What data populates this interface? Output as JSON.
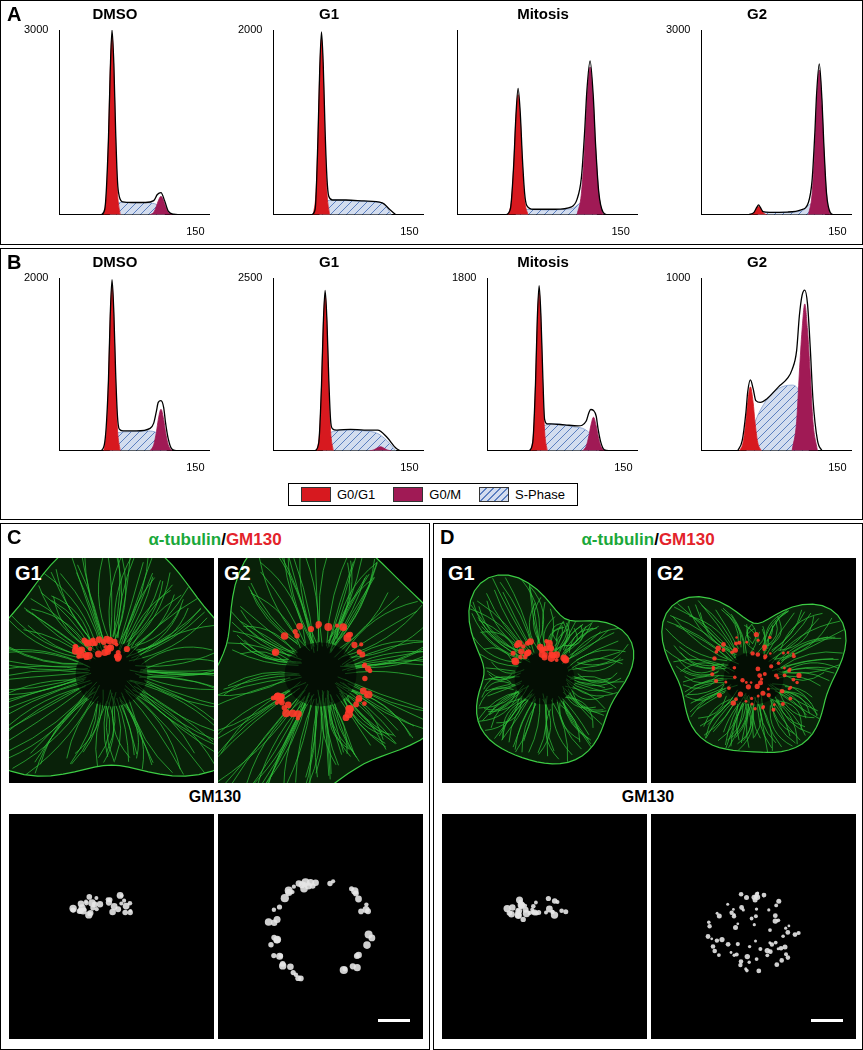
{
  "chart_data": [
    {
      "panel": "A",
      "type": "line",
      "title": "DMSO",
      "xlim": [
        0,
        165
      ],
      "xticks": [
        150
      ],
      "ylim": [
        0,
        3000
      ],
      "yticks": [
        3000
      ],
      "grid": false,
      "series": [
        {
          "name": "G0/G1",
          "color": "#d7191f",
          "x": [
            49,
            52,
            54,
            56,
            58,
            60,
            62,
            64,
            67
          ],
          "values": [
            0,
            380,
            1190,
            2320,
            2900,
            2320,
            1190,
            380,
            0
          ]
        },
        {
          "name": "G0/M",
          "color": "#a01a55",
          "x": [
            100,
            104,
            107,
            109,
            112,
            115,
            117,
            120,
            124
          ],
          "values": [
            0,
            40,
            140,
            225,
            300,
            225,
            140,
            40,
            0
          ]
        },
        {
          "name": "S-Phase",
          "color": "#d3ddef",
          "x": [
            56,
            62,
            70,
            90,
            105,
            112,
            116
          ],
          "values": [
            0,
            180,
            200,
            200,
            180,
            100,
            0
          ]
        },
        {
          "color": "#000000",
          "x": [
            46,
            50,
            54,
            56,
            58,
            60,
            62,
            64,
            66,
            70,
            80,
            95,
            104,
            108,
            112,
            116,
            120,
            126,
            140
          ],
          "values": [
            0,
            90,
            1200,
            2320,
            3000,
            2450,
            1350,
            550,
            300,
            210,
            200,
            200,
            230,
            330,
            360,
            230,
            60,
            10,
            0
          ]
        }
      ]
    },
    {
      "panel": "A",
      "type": "line",
      "title": "G1",
      "xlim": [
        0,
        165
      ],
      "xticks": [
        150
      ],
      "ylim": [
        0,
        2000
      ],
      "yticks": [
        2000
      ],
      "grid": false,
      "series": [
        {
          "name": "G0/G1",
          "color": "#d7191f",
          "x": [
            44,
            47,
            49,
            51,
            53,
            55,
            57,
            59,
            62
          ],
          "values": [
            0,
            250,
            780,
            1520,
            1900,
            1520,
            780,
            250,
            0
          ]
        },
        {
          "name": "S-Phase",
          "color": "#d3ddef",
          "x": [
            51,
            58,
            70,
            90,
            110,
            122,
            130
          ],
          "values": [
            0,
            150,
            160,
            150,
            140,
            120,
            0
          ]
        },
        {
          "color": "#000000",
          "x": [
            42,
            46,
            49,
            51,
            53,
            55,
            57,
            59,
            61,
            65,
            80,
            100,
            120,
            128,
            135
          ],
          "values": [
            0,
            60,
            800,
            1560,
            1980,
            1600,
            900,
            400,
            200,
            160,
            160,
            150,
            130,
            60,
            0
          ]
        }
      ]
    },
    {
      "panel": "A",
      "type": "line",
      "title": "Mitosis",
      "xlim": [
        0,
        165
      ],
      "xticks": [
        150
      ],
      "ylim": [
        0,
        3000
      ],
      "yticks": [],
      "grid": false,
      "series": [
        {
          "name": "G0/G1",
          "color": "#d7191f",
          "x": [
            47,
            50,
            52,
            54,
            56,
            58,
            60,
            62,
            65
          ],
          "values": [
            0,
            250,
            800,
            1560,
            1950,
            1560,
            800,
            250,
            0
          ]
        },
        {
          "name": "G0/M",
          "color": "#a01a55",
          "x": [
            110,
            114,
            117,
            119,
            122,
            125,
            127,
            130,
            134
          ],
          "values": [
            0,
            340,
            1100,
            1800,
            2400,
            1800,
            1100,
            340,
            0
          ]
        },
        {
          "name": "S-Phase",
          "color": "#d3ddef",
          "x": [
            54,
            60,
            80,
            105,
            115,
            122,
            128
          ],
          "values": [
            0,
            90,
            80,
            100,
            200,
            150,
            0
          ]
        },
        {
          "color": "#000000",
          "x": [
            45,
            49,
            52,
            54,
            56,
            58,
            60,
            62,
            64,
            70,
            90,
            105,
            110,
            114,
            117,
            119,
            122,
            125,
            127,
            130,
            134,
            138
          ],
          "values": [
            0,
            100,
            820,
            1600,
            2050,
            1650,
            900,
            350,
            150,
            90,
            90,
            130,
            250,
            600,
            1350,
            2000,
            2500,
            1900,
            1150,
            360,
            40,
            0
          ]
        }
      ]
    },
    {
      "panel": "A",
      "type": "line",
      "title": "G2",
      "xlim": [
        0,
        165
      ],
      "xticks": [
        150
      ],
      "ylim": [
        0,
        3000
      ],
      "yticks": [
        3000
      ],
      "grid": false,
      "series": [
        {
          "name": "G0/G1",
          "color": "#d7191f",
          "x": [
            54,
            57,
            59,
            61,
            63,
            65,
            67,
            69,
            72
          ],
          "values": [
            0,
            20,
            60,
            110,
            140,
            110,
            60,
            20,
            0
          ]
        },
        {
          "name": "G0/M",
          "color": "#a01a55",
          "x": [
            118,
            122,
            125,
            127,
            130,
            133,
            135,
            138,
            142
          ],
          "values": [
            0,
            330,
            1080,
            1760,
            2350,
            1760,
            1080,
            330,
            0
          ]
        },
        {
          "name": "S-Phase",
          "color": "#d3ddef",
          "x": [
            62,
            70,
            90,
            110,
            122,
            130,
            136
          ],
          "values": [
            0,
            40,
            40,
            60,
            180,
            120,
            0
          ]
        },
        {
          "color": "#000000",
          "x": [
            52,
            58,
            61,
            63,
            65,
            68,
            75,
            95,
            110,
            118,
            122,
            125,
            127,
            130,
            133,
            135,
            138,
            142,
            146
          ],
          "values": [
            0,
            40,
            120,
            160,
            120,
            50,
            40,
            45,
            80,
            200,
            550,
            1300,
            1950,
            2450,
            1850,
            1150,
            350,
            40,
            0
          ]
        }
      ]
    },
    {
      "panel": "B",
      "type": "line",
      "title": "DMSO",
      "xlim": [
        0,
        165
      ],
      "xticks": [
        150
      ],
      "ylim": [
        0,
        2000
      ],
      "yticks": [
        2000
      ],
      "grid": false,
      "series": [
        {
          "name": "G0/G1",
          "color": "#d7191f",
          "x": [
            49,
            52,
            54,
            56,
            58,
            60,
            62,
            64,
            67
          ],
          "values": [
            0,
            250,
            780,
            1520,
            1900,
            1520,
            780,
            250,
            0
          ]
        },
        {
          "name": "G0/M",
          "color": "#a01a55",
          "x": [
            100,
            104,
            107,
            109,
            112,
            115,
            117,
            120,
            124
          ],
          "values": [
            0,
            70,
            220,
            360,
            480,
            360,
            220,
            70,
            0
          ]
        },
        {
          "name": "S-Phase",
          "color": "#d3ddef",
          "x": [
            56,
            62,
            75,
            95,
            105,
            112,
            118
          ],
          "values": [
            0,
            200,
            220,
            230,
            220,
            150,
            0
          ]
        },
        {
          "color": "#000000",
          "x": [
            46,
            50,
            54,
            56,
            58,
            60,
            62,
            64,
            66,
            70,
            85,
            100,
            104,
            107,
            109,
            112,
            115,
            117,
            120,
            124,
            130
          ],
          "values": [
            0,
            100,
            800,
            1560,
            1980,
            1600,
            900,
            400,
            250,
            230,
            230,
            260,
            320,
            460,
            560,
            580,
            500,
            330,
            140,
            20,
            0
          ]
        }
      ]
    },
    {
      "panel": "B",
      "type": "line",
      "title": "G1",
      "xlim": [
        0,
        165
      ],
      "xticks": [
        150
      ],
      "ylim": [
        0,
        2500
      ],
      "yticks": [
        2500
      ],
      "grid": false,
      "series": [
        {
          "name": "G0/G1",
          "color": "#d7191f",
          "x": [
            48,
            51,
            53,
            55,
            57,
            59,
            61,
            63,
            66
          ],
          "values": [
            0,
            290,
            920,
            1800,
            2250,
            1800,
            920,
            290,
            0
          ]
        },
        {
          "name": "G0/M",
          "color": "#a01a55",
          "x": [
            106,
            110,
            113,
            115,
            118,
            121,
            123,
            126,
            130
          ],
          "values": [
            0,
            10,
            30,
            45,
            60,
            45,
            30,
            10,
            0
          ]
        },
        {
          "name": "S-Phase",
          "color": "#d3ddef",
          "x": [
            55,
            62,
            80,
            100,
            115,
            125,
            135
          ],
          "values": [
            0,
            260,
            300,
            290,
            250,
            150,
            0
          ]
        },
        {
          "color": "#000000",
          "x": [
            46,
            50,
            53,
            55,
            57,
            59,
            61,
            63,
            65,
            70,
            85,
            100,
            115,
            125,
            135,
            140
          ],
          "values": [
            0,
            120,
            950,
            1840,
            2320,
            1880,
            1050,
            450,
            320,
            300,
            310,
            300,
            300,
            200,
            40,
            0
          ]
        }
      ]
    },
    {
      "panel": "B",
      "type": "line",
      "title": "Mitosis",
      "xlim": [
        0,
        165
      ],
      "xticks": [
        150
      ],
      "ylim": [
        0,
        1800
      ],
      "yticks": [
        1800
      ],
      "grid": false,
      "series": [
        {
          "name": "G0/G1",
          "color": "#d7191f",
          "x": [
            48,
            51,
            53,
            55,
            57,
            59,
            61,
            63,
            66
          ],
          "values": [
            0,
            210,
            680,
            1320,
            1650,
            1320,
            680,
            210,
            0
          ]
        },
        {
          "name": "G0/M",
          "color": "#a01a55",
          "x": [
            105,
            109,
            112,
            114,
            117,
            120,
            122,
            125,
            129
          ],
          "values": [
            0,
            50,
            160,
            260,
            350,
            260,
            160,
            50,
            0
          ]
        },
        {
          "name": "S-Phase",
          "color": "#d3ddef",
          "x": [
            55,
            62,
            75,
            95,
            108,
            117,
            123
          ],
          "values": [
            0,
            260,
            280,
            250,
            220,
            130,
            0
          ]
        },
        {
          "color": "#000000",
          "x": [
            46,
            50,
            53,
            55,
            57,
            59,
            61,
            63,
            66,
            70,
            85,
            100,
            109,
            112,
            114,
            117,
            120,
            122,
            125,
            129,
            135
          ],
          "values": [
            0,
            90,
            700,
            1380,
            1720,
            1400,
            800,
            330,
            280,
            280,
            270,
            260,
            310,
            400,
            430,
            420,
            360,
            230,
            90,
            10,
            0
          ]
        }
      ]
    },
    {
      "panel": "B",
      "type": "line",
      "title": "G2",
      "xlim": [
        0,
        165
      ],
      "xticks": [
        150
      ],
      "ylim": [
        0,
        1000
      ],
      "yticks": [
        1000
      ],
      "grid": false,
      "series": [
        {
          "name": "G0/G1",
          "color": "#d7191f",
          "x": [
            42,
            46,
            49,
            51,
            54,
            57,
            59,
            62,
            66
          ],
          "values": [
            0,
            50,
            170,
            280,
            370,
            280,
            170,
            50,
            0
          ]
        },
        {
          "name": "G0/M",
          "color": "#a01a55",
          "x": [
            100,
            105,
            108,
            111,
            114,
            117,
            120,
            123,
            128
          ],
          "values": [
            0,
            170,
            450,
            700,
            850,
            700,
            450,
            170,
            0
          ]
        },
        {
          "name": "S-Phase",
          "color": "#d3ddef",
          "x": [
            50,
            58,
            70,
            85,
            100,
            110,
            118
          ],
          "values": [
            0,
            150,
            280,
            360,
            380,
            300,
            0
          ]
        },
        {
          "color": "#000000",
          "x": [
            40,
            45,
            49,
            51,
            54,
            57,
            60,
            65,
            72,
            85,
            95,
            100,
            105,
            108,
            111,
            114,
            117,
            120,
            123,
            128,
            133
          ],
          "values": [
            0,
            60,
            220,
            340,
            410,
            360,
            290,
            280,
            300,
            370,
            420,
            470,
            580,
            780,
            900,
            930,
            850,
            600,
            300,
            60,
            0
          ]
        }
      ]
    }
  ],
  "image_panels": [
    {
      "label": "C",
      "title": [
        {
          "text": "α-tubulin",
          "color": "#1aa83a"
        },
        {
          "text": "/",
          "color": "#000000"
        },
        {
          "text": "GM130",
          "color": "#e3232b"
        }
      ],
      "cells": [
        "G1",
        "G2"
      ],
      "channel": "GM130"
    },
    {
      "label": "D",
      "title": [
        {
          "text": "α-tubulin",
          "color": "#1aa83a"
        },
        {
          "text": "/",
          "color": "#000000"
        },
        {
          "text": "GM130",
          "color": "#e3232b"
        }
      ],
      "cells": [
        "G1",
        "G2"
      ],
      "channel": "GM130"
    }
  ]
}
